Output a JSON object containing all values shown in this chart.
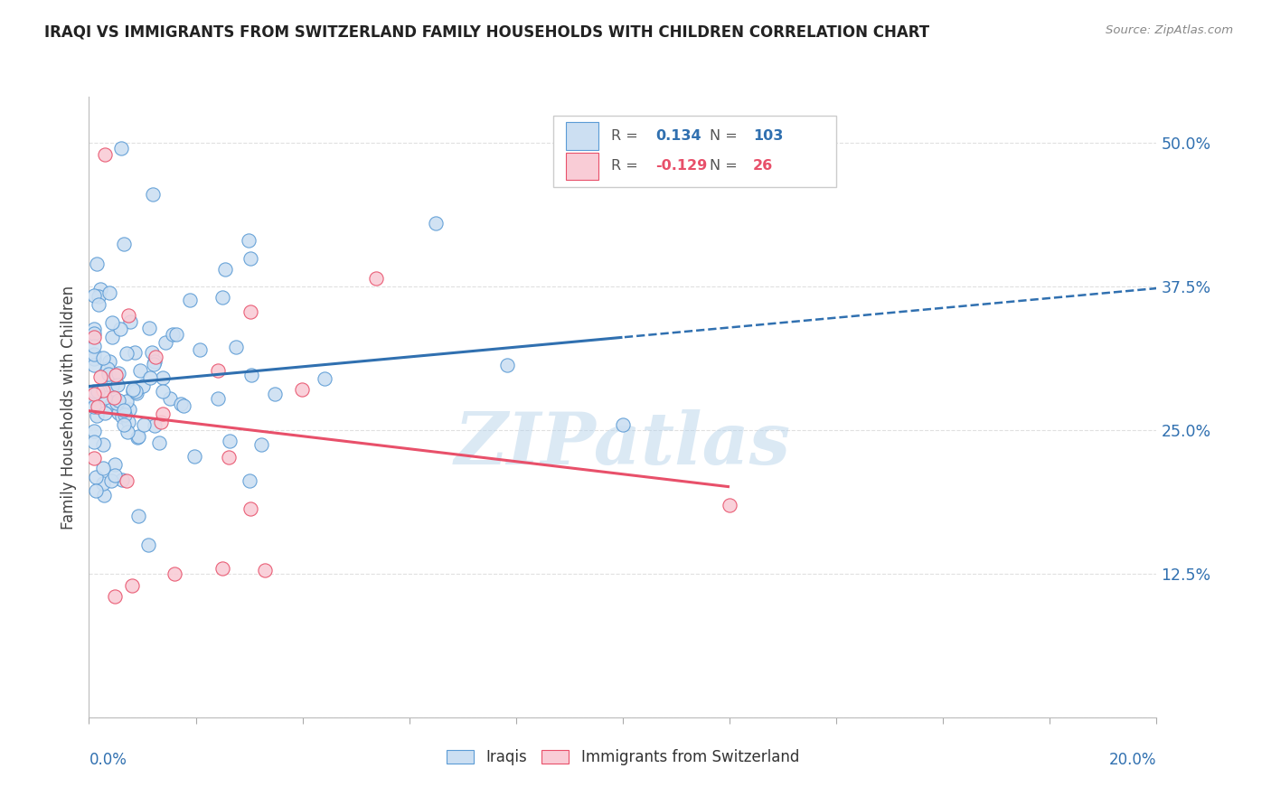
{
  "title": "IRAQI VS IMMIGRANTS FROM SWITZERLAND FAMILY HOUSEHOLDS WITH CHILDREN CORRELATION CHART",
  "source": "Source: ZipAtlas.com",
  "ylabel": "Family Households with Children",
  "yticks": [
    0.0,
    0.125,
    0.25,
    0.375,
    0.5
  ],
  "ytick_labels": [
    "",
    "12.5%",
    "25.0%",
    "37.5%",
    "50.0%"
  ],
  "xlim": [
    0.0,
    0.2
  ],
  "ylim": [
    0.0,
    0.54
  ],
  "r_iraqis": 0.134,
  "n_iraqis": 103,
  "r_swiss": -0.129,
  "n_swiss": 26,
  "blue_fill": "#ccdff2",
  "blue_edge": "#5b9bd5",
  "pink_fill": "#f9ccd6",
  "pink_edge": "#e8506a",
  "blue_line": "#3070b0",
  "pink_line": "#e8506a",
  "watermark": "ZIPatlas",
  "background_color": "#ffffff",
  "grid_color": "#e0e0e0"
}
